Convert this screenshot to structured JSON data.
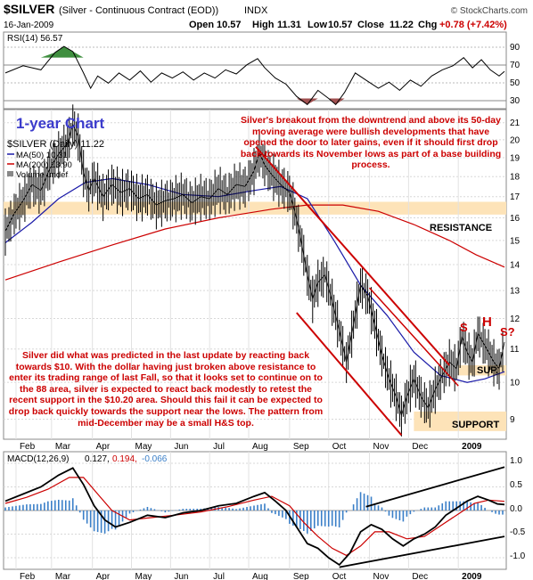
{
  "header": {
    "symbol": "$SILVER",
    "description": "(Silver - Continuous Contract (EOD))",
    "exchange": "INDX",
    "source": "© StockCharts.com",
    "date": "16-Jan-2009",
    "open_label": "Open",
    "open": "10.57",
    "high_label": "High",
    "high": "11.31",
    "low_label": "Low",
    "low": "10.57",
    "close_label": "Close",
    "close": "11.22",
    "chg_label": "Chg",
    "chg": "+0.78 (+7.42%)",
    "chg_color": "#cc0000"
  },
  "colors": {
    "price": "#000000",
    "ma50": "#1a1aa8",
    "ma200": "#cc0000",
    "annotation_red": "#cc0000",
    "resistance_band": "#fde3b8",
    "title_blue": "#3b3bcc",
    "rsi_fill_green": "#3f8f3f",
    "rsi_fill_red": "#a05050",
    "macd_hist": "#3a7fc8"
  },
  "rsi_panel": {
    "legend": "RSI(14) 56.57",
    "ticks": [
      "90",
      "70",
      "50",
      "30"
    ]
  },
  "price_panel": {
    "chart_title": "1-year Chart",
    "legend_main": "$SILVER (Daily) 11.22",
    "legend_ma50": "MA(50) 10.31",
    "legend_ma200": "MA(200) 13.90",
    "legend_volume": "Volume undef",
    "ticks": [
      "21",
      "20",
      "19",
      "18",
      "17",
      "16",
      "15",
      "14",
      "13",
      "12",
      "11",
      "10",
      "9"
    ],
    "resistance_label": "RESISTANCE",
    "support_label": "SUPPORT",
    "sup_label": "SUP.",
    "hs_s1": "S",
    "hs_h": "H",
    "hs_s2": "S?",
    "note_top": "Silver's breakout from the downtrend and above its 50-day moving average were bullish developments that have opened the door to later gains, even if it should first drop back towards its November lows as part of a base building process.",
    "note_bottom": "Silver did what was predicted in the last update by reacting back towards $10. With the dollar having just broken above resistance to enter its trading range of last Fall, so that it looks set to continue on to the 88 area, silver is expected to react back modestly to retest the recent support in the $10.20 area. Should this fail it can be expected to drop back quickly towards the support near the lows. The pattern from mid-December may be a small H&S top."
  },
  "x_axis": {
    "months": [
      "Feb",
      "Mar",
      "Apr",
      "May",
      "Jun",
      "Jul",
      "Aug",
      "Sep",
      "Oct",
      "Nov",
      "Dec",
      "2009"
    ]
  },
  "macd_panel": {
    "legend_name": "MACD(12,26,9)",
    "legend_v1": "0.127,",
    "legend_v2": "0.194,",
    "legend_v3": "-0.066",
    "ticks": [
      "1.0",
      "0.5",
      "0.0",
      "-0.5",
      "-1.0"
    ]
  },
  "chart_data": {
    "type": "line",
    "title": "$SILVER (Silver - Continuous Contract (EOD))",
    "ylim": [
      8.5,
      21.8
    ],
    "yscale": "log",
    "resistance_band": [
      16.15,
      16.75
    ],
    "support_band": [
      8.7,
      9.2
    ],
    "sup_band": [
      10.2,
      10.5
    ],
    "price_series": [
      {
        "t": 0,
        "v": 15.4
      },
      {
        "t": 5,
        "v": 16.2
      },
      {
        "t": 10,
        "v": 16.8
      },
      {
        "t": 15,
        "v": 17.6
      },
      {
        "t": 20,
        "v": 17.3
      },
      {
        "t": 25,
        "v": 18.4
      },
      {
        "t": 30,
        "v": 19.2
      },
      {
        "t": 35,
        "v": 19.8
      },
      {
        "t": 38,
        "v": 20.9
      },
      {
        "t": 41,
        "v": 20.2
      },
      {
        "t": 44,
        "v": 18.2
      },
      {
        "t": 47,
        "v": 17.3
      },
      {
        "t": 50,
        "v": 17.9
      },
      {
        "t": 55,
        "v": 17.0
      },
      {
        "t": 60,
        "v": 17.6
      },
      {
        "t": 65,
        "v": 17.2
      },
      {
        "t": 70,
        "v": 17.4
      },
      {
        "t": 75,
        "v": 16.9
      },
      {
        "t": 80,
        "v": 17.1
      },
      {
        "t": 85,
        "v": 16.6
      },
      {
        "t": 90,
        "v": 16.8
      },
      {
        "t": 95,
        "v": 16.9
      },
      {
        "t": 100,
        "v": 17.1
      },
      {
        "t": 105,
        "v": 16.7
      },
      {
        "t": 110,
        "v": 17.0
      },
      {
        "t": 115,
        "v": 16.9
      },
      {
        "t": 120,
        "v": 17.4
      },
      {
        "t": 125,
        "v": 17.1
      },
      {
        "t": 130,
        "v": 17.6
      },
      {
        "t": 135,
        "v": 17.5
      },
      {
        "t": 140,
        "v": 18.3
      },
      {
        "t": 143,
        "v": 19.3
      },
      {
        "t": 146,
        "v": 18.6
      },
      {
        "t": 150,
        "v": 18.1
      },
      {
        "t": 155,
        "v": 17.6
      },
      {
        "t": 160,
        "v": 17.2
      },
      {
        "t": 163,
        "v": 16.3
      },
      {
        "t": 166,
        "v": 15.2
      },
      {
        "t": 170,
        "v": 13.6
      },
      {
        "t": 173,
        "v": 12.7
      },
      {
        "t": 176,
        "v": 13.3
      },
      {
        "t": 180,
        "v": 13.6
      },
      {
        "t": 184,
        "v": 12.6
      },
      {
        "t": 188,
        "v": 11.6
      },
      {
        "t": 192,
        "v": 10.6
      },
      {
        "t": 196,
        "v": 11.8
      },
      {
        "t": 200,
        "v": 13.2
      },
      {
        "t": 204,
        "v": 12.8
      },
      {
        "t": 208,
        "v": 11.8
      },
      {
        "t": 212,
        "v": 10.8
      },
      {
        "t": 216,
        "v": 10.1
      },
      {
        "t": 220,
        "v": 9.6
      },
      {
        "t": 223,
        "v": 9.1
      },
      {
        "t": 226,
        "v": 9.6
      },
      {
        "t": 230,
        "v": 10.1
      },
      {
        "t": 234,
        "v": 9.6
      },
      {
        "t": 238,
        "v": 9.3
      },
      {
        "t": 242,
        "v": 9.8
      },
      {
        "t": 246,
        "v": 10.2
      },
      {
        "t": 250,
        "v": 10.6
      },
      {
        "t": 254,
        "v": 10.4
      },
      {
        "t": 257,
        "v": 11.4
      },
      {
        "t": 260,
        "v": 10.9
      },
      {
        "t": 263,
        "v": 10.6
      },
      {
        "t": 266,
        "v": 11.5
      },
      {
        "t": 269,
        "v": 11.2
      },
      {
        "t": 272,
        "v": 10.9
      },
      {
        "t": 275,
        "v": 10.6
      },
      {
        "t": 278,
        "v": 10.4
      },
      {
        "t": 281,
        "v": 11.22
      }
    ],
    "ma50_series": [
      {
        "t": 0,
        "v": 14.9
      },
      {
        "t": 15,
        "v": 15.8
      },
      {
        "t": 30,
        "v": 16.9
      },
      {
        "t": 45,
        "v": 17.7
      },
      {
        "t": 60,
        "v": 17.9
      },
      {
        "t": 80,
        "v": 17.6
      },
      {
        "t": 100,
        "v": 17.1
      },
      {
        "t": 120,
        "v": 17.0
      },
      {
        "t": 140,
        "v": 17.3
      },
      {
        "t": 155,
        "v": 17.5
      },
      {
        "t": 170,
        "v": 16.9
      },
      {
        "t": 185,
        "v": 15.0
      },
      {
        "t": 200,
        "v": 13.2
      },
      {
        "t": 215,
        "v": 12.1
      },
      {
        "t": 230,
        "v": 10.9
      },
      {
        "t": 245,
        "v": 10.2
      },
      {
        "t": 260,
        "v": 10.0
      },
      {
        "t": 270,
        "v": 10.1
      },
      {
        "t": 281,
        "v": 10.31
      }
    ],
    "ma200_series": [
      {
        "t": 0,
        "v": 13.4
      },
      {
        "t": 30,
        "v": 14.1
      },
      {
        "t": 60,
        "v": 14.8
      },
      {
        "t": 90,
        "v": 15.5
      },
      {
        "t": 120,
        "v": 16.0
      },
      {
        "t": 150,
        "v": 16.4
      },
      {
        "t": 170,
        "v": 16.6
      },
      {
        "t": 190,
        "v": 16.6
      },
      {
        "t": 210,
        "v": 16.3
      },
      {
        "t": 230,
        "v": 15.7
      },
      {
        "t": 250,
        "v": 15.0
      },
      {
        "t": 265,
        "v": 14.4
      },
      {
        "t": 281,
        "v": 13.9
      }
    ],
    "downtrend_channel": {
      "upper": [
        {
          "t": 141,
          "v": 19.6
        },
        {
          "t": 250,
          "v": 10.5
        }
      ],
      "lower": [
        {
          "t": 164,
          "v": 12.2
        },
        {
          "t": 223,
          "v": 8.6
        }
      ],
      "inner": [
        {
          "t": 205,
          "v": 13.1
        },
        {
          "t": 255,
          "v": 9.9
        }
      ]
    },
    "rsi": {
      "ylim": [
        20,
        95
      ],
      "series": [
        {
          "t": 0,
          "v": 55
        },
        {
          "t": 10,
          "v": 62
        },
        {
          "t": 20,
          "v": 58
        },
        {
          "t": 28,
          "v": 75
        },
        {
          "t": 33,
          "v": 81
        },
        {
          "t": 38,
          "v": 76
        },
        {
          "t": 44,
          "v": 55
        },
        {
          "t": 48,
          "v": 40
        },
        {
          "t": 52,
          "v": 52
        },
        {
          "t": 58,
          "v": 45
        },
        {
          "t": 64,
          "v": 55
        },
        {
          "t": 70,
          "v": 48
        },
        {
          "t": 76,
          "v": 57
        },
        {
          "t": 82,
          "v": 46
        },
        {
          "t": 88,
          "v": 55
        },
        {
          "t": 94,
          "v": 50
        },
        {
          "t": 100,
          "v": 56
        },
        {
          "t": 106,
          "v": 48
        },
        {
          "t": 112,
          "v": 55
        },
        {
          "t": 118,
          "v": 50
        },
        {
          "t": 124,
          "v": 58
        },
        {
          "t": 130,
          "v": 54
        },
        {
          "t": 136,
          "v": 63
        },
        {
          "t": 142,
          "v": 69
        },
        {
          "t": 146,
          "v": 60
        },
        {
          "t": 152,
          "v": 50
        },
        {
          "t": 158,
          "v": 44
        },
        {
          "t": 164,
          "v": 32
        },
        {
          "t": 170,
          "v": 24
        },
        {
          "t": 176,
          "v": 38
        },
        {
          "t": 182,
          "v": 30
        },
        {
          "t": 186,
          "v": 24
        },
        {
          "t": 191,
          "v": 36
        },
        {
          "t": 197,
          "v": 55
        },
        {
          "t": 203,
          "v": 48
        },
        {
          "t": 210,
          "v": 40
        },
        {
          "t": 216,
          "v": 46
        },
        {
          "t": 222,
          "v": 38
        },
        {
          "t": 228,
          "v": 48
        },
        {
          "t": 234,
          "v": 42
        },
        {
          "t": 240,
          "v": 52
        },
        {
          "t": 246,
          "v": 58
        },
        {
          "t": 252,
          "v": 62
        },
        {
          "t": 258,
          "v": 70
        },
        {
          "t": 263,
          "v": 60
        },
        {
          "t": 268,
          "v": 68
        },
        {
          "t": 273,
          "v": 58
        },
        {
          "t": 278,
          "v": 52
        },
        {
          "t": 281,
          "v": 56.57
        }
      ]
    },
    "macd": {
      "ylim": [
        -1.2,
        1.2
      ],
      "macd_line": [
        {
          "t": 0,
          "v": 0.2
        },
        {
          "t": 10,
          "v": 0.35
        },
        {
          "t": 20,
          "v": 0.5
        },
        {
          "t": 30,
          "v": 0.75
        },
        {
          "t": 38,
          "v": 0.9
        },
        {
          "t": 44,
          "v": 0.55
        },
        {
          "t": 50,
          "v": 0.1
        },
        {
          "t": 56,
          "v": -0.2
        },
        {
          "t": 62,
          "v": -0.35
        },
        {
          "t": 70,
          "v": -0.25
        },
        {
          "t": 80,
          "v": -0.1
        },
        {
          "t": 90,
          "v": -0.15
        },
        {
          "t": 100,
          "v": -0.05
        },
        {
          "t": 110,
          "v": 0.0
        },
        {
          "t": 120,
          "v": 0.1
        },
        {
          "t": 130,
          "v": 0.15
        },
        {
          "t": 140,
          "v": 0.3
        },
        {
          "t": 146,
          "v": 0.38
        },
        {
          "t": 152,
          "v": 0.2
        },
        {
          "t": 158,
          "v": 0.0
        },
        {
          "t": 164,
          "v": -0.35
        },
        {
          "t": 170,
          "v": -0.7
        },
        {
          "t": 176,
          "v": -0.8
        },
        {
          "t": 182,
          "v": -1.0
        },
        {
          "t": 188,
          "v": -1.15
        },
        {
          "t": 194,
          "v": -0.9
        },
        {
          "t": 200,
          "v": -0.45
        },
        {
          "t": 206,
          "v": -0.3
        },
        {
          "t": 212,
          "v": -0.4
        },
        {
          "t": 218,
          "v": -0.6
        },
        {
          "t": 224,
          "v": -0.75
        },
        {
          "t": 230,
          "v": -0.6
        },
        {
          "t": 236,
          "v": -0.5
        },
        {
          "t": 242,
          "v": -0.35
        },
        {
          "t": 248,
          "v": -0.1
        },
        {
          "t": 254,
          "v": 0.05
        },
        {
          "t": 260,
          "v": 0.2
        },
        {
          "t": 266,
          "v": 0.3
        },
        {
          "t": 272,
          "v": 0.22
        },
        {
          "t": 277,
          "v": 0.14
        },
        {
          "t": 281,
          "v": 0.127
        }
      ],
      "signal_line": [
        {
          "t": 0,
          "v": 0.15
        },
        {
          "t": 12,
          "v": 0.28
        },
        {
          "t": 24,
          "v": 0.45
        },
        {
          "t": 36,
          "v": 0.7
        },
        {
          "t": 44,
          "v": 0.7
        },
        {
          "t": 52,
          "v": 0.35
        },
        {
          "t": 60,
          "v": 0.0
        },
        {
          "t": 70,
          "v": -0.2
        },
        {
          "t": 82,
          "v": -0.15
        },
        {
          "t": 95,
          "v": -0.1
        },
        {
          "t": 110,
          "v": -0.03
        },
        {
          "t": 125,
          "v": 0.08
        },
        {
          "t": 140,
          "v": 0.22
        },
        {
          "t": 150,
          "v": 0.3
        },
        {
          "t": 160,
          "v": 0.1
        },
        {
          "t": 168,
          "v": -0.25
        },
        {
          "t": 176,
          "v": -0.55
        },
        {
          "t": 184,
          "v": -0.8
        },
        {
          "t": 192,
          "v": -0.95
        },
        {
          "t": 200,
          "v": -0.75
        },
        {
          "t": 208,
          "v": -0.45
        },
        {
          "t": 216,
          "v": -0.45
        },
        {
          "t": 226,
          "v": -0.6
        },
        {
          "t": 236,
          "v": -0.55
        },
        {
          "t": 246,
          "v": -0.3
        },
        {
          "t": 256,
          "v": -0.05
        },
        {
          "t": 264,
          "v": 0.15
        },
        {
          "t": 272,
          "v": 0.22
        },
        {
          "t": 281,
          "v": 0.194
        }
      ],
      "upper_trend": [
        {
          "t": 203,
          "v": 0.08
        },
        {
          "t": 281,
          "v": 0.92
        }
      ],
      "lower_trend": [
        {
          "t": 188,
          "v": -1.2
        },
        {
          "t": 281,
          "v": -0.55
        }
      ]
    }
  }
}
